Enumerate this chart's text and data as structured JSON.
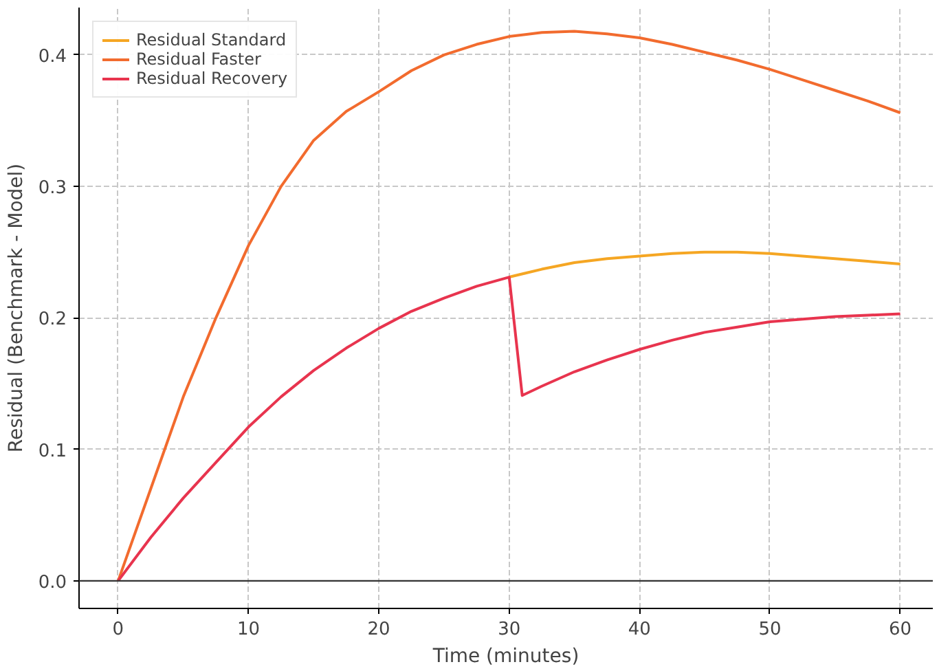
{
  "chart_data": {
    "type": "line",
    "xlabel": "Time (minutes)",
    "ylabel": "Residual (Benchmark - Model)",
    "xlim": [
      -3,
      62.5
    ],
    "ylim": [
      -0.021,
      0.436
    ],
    "xticks": [
      0,
      10,
      20,
      30,
      40,
      50,
      60
    ],
    "yticks": [
      {
        "value": 0,
        "label": "0.0"
      },
      {
        "value": 0.1,
        "label": "0.1"
      },
      {
        "value": 0.2,
        "label": "0.2"
      },
      {
        "value": 0.3,
        "label": "0.3"
      },
      {
        "value": 0.4,
        "label": "0.4"
      }
    ],
    "grid": true,
    "legend": "top left",
    "line_style": "solid",
    "ref_lines": [
      {
        "axis": "y",
        "value": 0,
        "label": null,
        "color": "#333333"
      }
    ],
    "series": [
      {
        "name": "Residual Standard",
        "color": "#f5a623",
        "x": [
          30,
          32.5,
          35,
          37.5,
          40,
          42.5,
          45,
          47.5,
          50,
          52.5,
          55,
          57.5,
          60
        ],
        "values": [
          0.231,
          0.237,
          0.242,
          0.245,
          0.247,
          0.249,
          0.25,
          0.25,
          0.249,
          0.247,
          0.245,
          0.243,
          0.241
        ]
      },
      {
        "name": "Residual Faster",
        "color": "#f26b2e",
        "x": [
          0,
          2.5,
          5,
          7.5,
          10,
          12.5,
          15,
          17.5,
          20,
          22.5,
          25,
          27.5,
          30,
          32.5,
          35,
          37.5,
          40,
          42.5,
          45,
          47.5,
          50,
          52.5,
          55,
          57.5,
          60
        ],
        "values": [
          0,
          0.07,
          0.14,
          0.2,
          0.255,
          0.3,
          0.335,
          0.357,
          0.372,
          0.388,
          0.4,
          0.408,
          0.414,
          0.417,
          0.418,
          0.416,
          0.413,
          0.408,
          0.402,
          0.396,
          0.389,
          0.381,
          0.373,
          0.365,
          0.356
        ]
      },
      {
        "name": "Residual Recovery",
        "color": "#e8344e",
        "x": [
          0,
          2.5,
          5,
          7.5,
          10,
          12.5,
          15,
          17.5,
          20,
          22.5,
          25,
          27.5,
          30,
          31,
          32.5,
          35,
          37.5,
          40,
          42.5,
          45,
          47.5,
          50,
          52.5,
          55,
          57.5,
          60
        ],
        "values": [
          0,
          0.033,
          0.063,
          0.09,
          0.117,
          0.14,
          0.16,
          0.177,
          0.192,
          0.205,
          0.215,
          0.224,
          0.231,
          0.141,
          0.148,
          0.159,
          0.168,
          0.176,
          0.183,
          0.189,
          0.193,
          0.197,
          0.199,
          0.201,
          0.202,
          0.203
        ]
      }
    ]
  }
}
